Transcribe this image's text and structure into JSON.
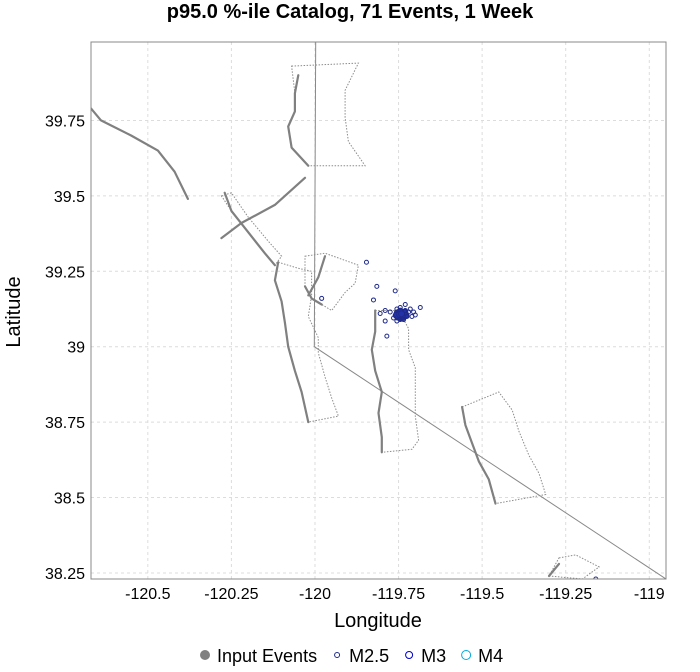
{
  "chart_data": {
    "type": "scatter",
    "title": "p95.0 %-ile Catalog, 71 Events, 1 Week",
    "xlabel": "Longitude",
    "ylabel": "Latitude",
    "xlim": [
      -120.67,
      -118.95
    ],
    "ylim": [
      38.23,
      40.01
    ],
    "x_ticks": [
      -120.5,
      -120.25,
      -120,
      -119.75,
      -119.5,
      -119.25,
      -119
    ],
    "x_tick_labels": [
      "-120.5",
      "-120.25",
      "-120",
      "-119.75",
      "-119.5",
      "-119.25",
      "-119"
    ],
    "y_ticks": [
      38.25,
      38.5,
      38.75,
      39,
      39.25,
      39.5,
      39.75
    ],
    "y_tick_labels": [
      "38.25",
      "38.5",
      "38.75",
      "39",
      "39.25",
      "39.5",
      "39.75"
    ],
    "grid": true,
    "legend_placement": "bottom",
    "legend": [
      {
        "label": "Input Events",
        "marker": "filled-circle",
        "color": "#808080"
      },
      {
        "label": "M2.5",
        "marker": "open-circle",
        "color": "#1f2a8a"
      },
      {
        "label": "M3",
        "marker": "open-circle",
        "color": "#0000cc"
      },
      {
        "label": "M4",
        "marker": "open-circle",
        "color": "#00aadd"
      }
    ],
    "colors": {
      "fault": "#808080",
      "fault_surface": "#8c8c8c",
      "border": "#888888",
      "grid": "#dcdcdc",
      "m25": "#1f2a8a",
      "cluster_fill": "#2233aa"
    },
    "state_border": [
      [
        -119.998,
        40.01
      ],
      [
        -120.002,
        39.0
      ],
      [
        -118.95,
        38.23
      ]
    ],
    "faults": [
      [
        [
          -120.67,
          39.79
        ],
        [
          -120.64,
          39.75
        ],
        [
          -120.55,
          39.7
        ],
        [
          -120.47,
          39.65
        ],
        [
          -120.42,
          39.58
        ],
        [
          -120.38,
          39.49
        ]
      ],
      [
        [
          -120.28,
          39.36
        ],
        [
          -120.22,
          39.41
        ],
        [
          -120.12,
          39.47
        ],
        [
          -120.03,
          39.56
        ]
      ],
      [
        [
          -120.05,
          39.9
        ],
        [
          -120.06,
          39.84
        ],
        [
          -120.06,
          39.78
        ],
        [
          -120.08,
          39.73
        ],
        [
          -120.07,
          39.66
        ],
        [
          -120.02,
          39.6
        ]
      ],
      [
        [
          -120.27,
          39.51
        ],
        [
          -120.25,
          39.45
        ],
        [
          -120.2,
          39.38
        ],
        [
          -120.15,
          39.31
        ],
        [
          -120.12,
          39.27
        ]
      ],
      [
        [
          -120.11,
          39.28
        ],
        [
          -120.12,
          39.22
        ],
        [
          -120.1,
          39.15
        ],
        [
          -120.09,
          39.08
        ],
        [
          -120.08,
          39.0
        ],
        [
          -120.06,
          38.92
        ],
        [
          -120.04,
          38.85
        ],
        [
          -120.02,
          38.75
        ]
      ],
      [
        [
          -120.03,
          39.2
        ],
        [
          -120.01,
          39.16
        ],
        [
          -119.98,
          39.14
        ]
      ],
      [
        [
          -120.02,
          39.17
        ],
        [
          -119.99,
          39.23
        ],
        [
          -119.97,
          39.3
        ]
      ],
      [
        [
          -119.82,
          39.12
        ],
        [
          -119.82,
          39.05
        ],
        [
          -119.83,
          38.99
        ],
        [
          -119.82,
          38.92
        ],
        [
          -119.8,
          38.85
        ],
        [
          -119.81,
          38.78
        ],
        [
          -119.8,
          38.7
        ],
        [
          -119.8,
          38.65
        ]
      ],
      [
        [
          -119.56,
          38.8
        ],
        [
          -119.55,
          38.74
        ],
        [
          -119.53,
          38.68
        ],
        [
          -119.51,
          38.62
        ],
        [
          -119.48,
          38.56
        ],
        [
          -119.46,
          38.48
        ]
      ],
      [
        [
          -119.3,
          38.24
        ],
        [
          -119.27,
          38.28
        ]
      ]
    ],
    "fault_surfaces": [
      [
        [
          -120.07,
          39.93
        ],
        [
          -119.87,
          39.94
        ],
        [
          -119.91,
          39.85
        ],
        [
          -119.91,
          39.76
        ],
        [
          -119.9,
          39.68
        ],
        [
          -119.85,
          39.6
        ],
        [
          -120.02,
          39.6
        ],
        [
          -120.07,
          39.66
        ],
        [
          -120.08,
          39.73
        ],
        [
          -120.06,
          39.78
        ],
        [
          -120.06,
          39.84
        ],
        [
          -120.07,
          39.93
        ]
      ],
      [
        [
          -120.28,
          39.5
        ],
        [
          -120.25,
          39.51
        ],
        [
          -120.2,
          39.43
        ],
        [
          -120.14,
          39.35
        ],
        [
          -120.1,
          39.3
        ],
        [
          -120.12,
          39.27
        ],
        [
          -120.15,
          39.31
        ],
        [
          -120.2,
          39.38
        ],
        [
          -120.25,
          39.45
        ],
        [
          -120.28,
          39.5
        ]
      ],
      [
        [
          -120.11,
          39.28
        ],
        [
          -120.05,
          39.26
        ],
        [
          -120.01,
          39.25
        ],
        [
          -120.01,
          39.17
        ],
        [
          -120.02,
          39.1
        ],
        [
          -119.99,
          39.03
        ],
        [
          -119.99,
          38.98
        ],
        [
          -119.97,
          38.9
        ],
        [
          -119.95,
          38.83
        ],
        [
          -119.93,
          38.77
        ],
        [
          -120.02,
          38.75
        ],
        [
          -120.04,
          38.85
        ],
        [
          -120.06,
          38.92
        ],
        [
          -120.08,
          39.0
        ],
        [
          -120.09,
          39.08
        ],
        [
          -120.1,
          39.15
        ],
        [
          -120.12,
          39.22
        ],
        [
          -120.11,
          39.28
        ]
      ],
      [
        [
          -120.03,
          39.3
        ],
        [
          -119.97,
          39.31
        ],
        [
          -119.87,
          39.27
        ],
        [
          -119.88,
          39.21
        ],
        [
          -119.91,
          39.18
        ],
        [
          -119.95,
          39.12
        ],
        [
          -119.98,
          39.14
        ],
        [
          -120.01,
          39.16
        ],
        [
          -120.03,
          39.2
        ],
        [
          -120.03,
          39.3
        ]
      ],
      [
        [
          -119.82,
          39.12
        ],
        [
          -119.75,
          39.12
        ],
        [
          -119.72,
          39.06
        ],
        [
          -119.72,
          38.99
        ],
        [
          -119.7,
          38.93
        ],
        [
          -119.7,
          38.85
        ],
        [
          -119.7,
          38.77
        ],
        [
          -119.69,
          38.69
        ],
        [
          -119.71,
          38.66
        ],
        [
          -119.8,
          38.65
        ],
        [
          -119.8,
          38.7
        ],
        [
          -119.81,
          38.78
        ],
        [
          -119.8,
          38.85
        ],
        [
          -119.82,
          38.92
        ],
        [
          -119.83,
          38.99
        ],
        [
          -119.82,
          39.05
        ],
        [
          -119.82,
          39.12
        ]
      ],
      [
        [
          -119.56,
          38.8
        ],
        [
          -119.45,
          38.85
        ],
        [
          -119.41,
          38.79
        ],
        [
          -119.39,
          38.72
        ],
        [
          -119.36,
          38.64
        ],
        [
          -119.33,
          38.58
        ],
        [
          -119.31,
          38.51
        ],
        [
          -119.46,
          38.48
        ],
        [
          -119.48,
          38.56
        ],
        [
          -119.51,
          38.62
        ],
        [
          -119.53,
          38.68
        ],
        [
          -119.55,
          38.74
        ],
        [
          -119.56,
          38.8
        ]
      ],
      [
        [
          -119.27,
          38.3
        ],
        [
          -119.22,
          38.31
        ],
        [
          -119.15,
          38.27
        ],
        [
          -119.2,
          38.23
        ],
        [
          -119.3,
          38.24
        ],
        [
          -119.27,
          38.3
        ]
      ]
    ],
    "m25_events": [
      [
        -119.846,
        39.28
      ],
      [
        -119.98,
        39.16
      ],
      [
        -119.815,
        39.2
      ],
      [
        -119.825,
        39.155
      ],
      [
        -119.76,
        39.185
      ],
      [
        -119.73,
        39.14
      ],
      [
        -119.715,
        39.125
      ],
      [
        -119.685,
        39.13
      ],
      [
        -119.79,
        39.12
      ],
      [
        -119.805,
        39.11
      ],
      [
        -119.775,
        39.115
      ],
      [
        -119.755,
        39.125
      ],
      [
        -119.745,
        39.13
      ],
      [
        -119.72,
        39.115
      ],
      [
        -119.71,
        39.1
      ],
      [
        -119.7,
        39.105
      ],
      [
        -119.735,
        39.09
      ],
      [
        -119.755,
        39.085
      ],
      [
        -119.79,
        39.085
      ],
      [
        -119.785,
        39.035
      ],
      [
        -119.73,
        39.12
      ],
      [
        -119.765,
        39.095
      ],
      [
        -119.745,
        39.09
      ],
      [
        -119.725,
        39.1
      ],
      [
        -119.705,
        39.115
      ],
      [
        -119.16,
        38.23
      ]
    ],
    "cluster_events": [
      [
        -119.742,
        39.105
      ],
      [
        -119.746,
        39.112
      ],
      [
        -119.738,
        39.108
      ],
      [
        -119.75,
        39.108
      ],
      [
        -119.744,
        39.1
      ],
      [
        -119.735,
        39.104
      ],
      [
        -119.748,
        39.102
      ],
      [
        -119.74,
        39.114
      ],
      [
        -119.732,
        39.11
      ],
      [
        -119.754,
        39.112
      ],
      [
        -119.743,
        39.096
      ],
      [
        -119.736,
        39.097
      ],
      [
        -119.752,
        39.098
      ],
      [
        -119.728,
        39.105
      ],
      [
        -119.745,
        39.118
      ],
      [
        -119.739,
        39.101
      ],
      [
        -119.757,
        39.104
      ],
      [
        -119.731,
        39.114
      ],
      [
        -119.747,
        39.107
      ],
      [
        -119.741,
        39.109
      ]
    ]
  }
}
